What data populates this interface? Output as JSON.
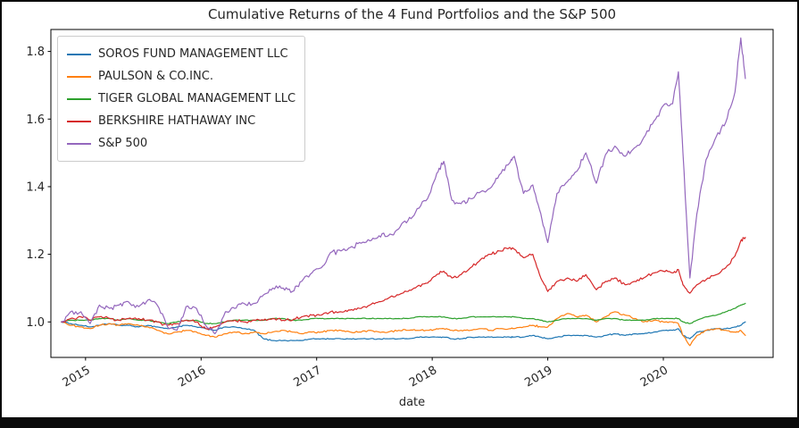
{
  "chart_data": {
    "type": "line",
    "title": "Cumulative Returns of the 4 Fund Portfolios and the S&P 500",
    "xlabel": "date",
    "ylabel": "",
    "xlim": [
      2014.7,
      2020.95
    ],
    "ylim": [
      0.895,
      1.865
    ],
    "xticks": [
      2015,
      2016,
      2017,
      2018,
      2019,
      2020
    ],
    "yticks": [
      1.0,
      1.2,
      1.4,
      1.6,
      1.8
    ],
    "grid": false,
    "legend_position": "upper left",
    "axis_color": "#000000",
    "tick_label_color": "#262626",
    "x": [
      2014.79,
      2014.87,
      2014.96,
      2015.04,
      2015.12,
      2015.21,
      2015.29,
      2015.37,
      2015.46,
      2015.54,
      2015.62,
      2015.71,
      2015.79,
      2015.87,
      2015.96,
      2016.04,
      2016.12,
      2016.21,
      2016.29,
      2016.37,
      2016.46,
      2016.54,
      2016.62,
      2016.71,
      2016.79,
      2016.87,
      2016.96,
      2017.04,
      2017.12,
      2017.21,
      2017.29,
      2017.37,
      2017.46,
      2017.54,
      2017.62,
      2017.71,
      2017.79,
      2017.87,
      2017.96,
      2018.04,
      2018.1,
      2018.17,
      2018.25,
      2018.33,
      2018.42,
      2018.5,
      2018.58,
      2018.67,
      2018.71,
      2018.79,
      2018.87,
      2018.94,
      2019.0,
      2019.08,
      2019.17,
      2019.25,
      2019.33,
      2019.42,
      2019.5,
      2019.58,
      2019.67,
      2019.75,
      2019.83,
      2019.92,
      2020.0,
      2020.08,
      2020.13,
      2020.17,
      2020.23,
      2020.29,
      2020.37,
      2020.46,
      2020.54,
      2020.62,
      2020.67,
      2020.71
    ],
    "series": [
      {
        "name": "SOROS FUND MANAGEMENT LLC",
        "color": "#1f77b4",
        "noise": 0.002,
        "values": [
          1.0,
          0.995,
          0.99,
          0.985,
          0.99,
          0.995,
          0.99,
          0.99,
          0.985,
          0.99,
          0.985,
          0.98,
          0.985,
          0.99,
          0.985,
          0.98,
          0.975,
          0.985,
          0.985,
          0.98,
          0.975,
          0.95,
          0.945,
          0.945,
          0.945,
          0.945,
          0.95,
          0.95,
          0.95,
          0.95,
          0.95,
          0.95,
          0.95,
          0.95,
          0.95,
          0.95,
          0.95,
          0.955,
          0.955,
          0.955,
          0.955,
          0.95,
          0.95,
          0.955,
          0.955,
          0.955,
          0.955,
          0.955,
          0.955,
          0.955,
          0.96,
          0.955,
          0.95,
          0.955,
          0.96,
          0.96,
          0.96,
          0.955,
          0.96,
          0.965,
          0.96,
          0.965,
          0.965,
          0.97,
          0.975,
          0.975,
          0.98,
          0.96,
          0.95,
          0.97,
          0.975,
          0.98,
          0.98,
          0.985,
          0.99,
          1.0
        ]
      },
      {
        "name": "PAULSON & CO.INC.",
        "color": "#ff7f0e",
        "noise": 0.003,
        "values": [
          1.0,
          0.99,
          0.985,
          0.98,
          0.99,
          0.995,
          0.99,
          0.995,
          0.99,
          0.985,
          0.975,
          0.965,
          0.97,
          0.975,
          0.97,
          0.96,
          0.955,
          0.965,
          0.97,
          0.965,
          0.97,
          0.965,
          0.97,
          0.975,
          0.97,
          0.965,
          0.97,
          0.97,
          0.975,
          0.975,
          0.97,
          0.97,
          0.975,
          0.97,
          0.97,
          0.975,
          0.975,
          0.975,
          0.975,
          0.98,
          0.98,
          0.975,
          0.975,
          0.975,
          0.98,
          0.975,
          0.98,
          0.98,
          0.98,
          0.985,
          0.99,
          0.985,
          0.985,
          1.01,
          1.025,
          1.015,
          1.02,
          1.0,
          1.015,
          1.03,
          1.02,
          1.01,
          1.0,
          1.005,
          1.0,
          1.0,
          0.995,
          0.96,
          0.93,
          0.96,
          0.975,
          0.98,
          0.975,
          0.97,
          0.975,
          0.96
        ]
      },
      {
        "name": "TIGER GLOBAL MANAGEMENT LLC",
        "color": "#2ca02c",
        "noise": 0.0015,
        "values": [
          1.0,
          1.005,
          1.005,
          1.005,
          1.01,
          1.01,
          1.005,
          1.01,
          1.005,
          1.005,
          1.0,
          0.995,
          1.0,
          1.005,
          1.005,
          0.995,
          0.995,
          1.0,
          1.005,
          1.005,
          1.005,
          1.005,
          1.01,
          1.01,
          1.005,
          1.005,
          1.01,
          1.01,
          1.01,
          1.01,
          1.01,
          1.01,
          1.01,
          1.01,
          1.01,
          1.01,
          1.01,
          1.015,
          1.015,
          1.015,
          1.015,
          1.01,
          1.01,
          1.015,
          1.015,
          1.015,
          1.015,
          1.015,
          1.015,
          1.01,
          1.01,
          1.005,
          1.0,
          1.005,
          1.01,
          1.01,
          1.01,
          1.005,
          1.01,
          1.01,
          1.005,
          1.005,
          1.005,
          1.01,
          1.01,
          1.01,
          1.01,
          1.0,
          0.995,
          1.005,
          1.015,
          1.02,
          1.03,
          1.04,
          1.05,
          1.055
        ]
      },
      {
        "name": "BERKSHIRE HATHAWAY INC",
        "color": "#d62728",
        "noise": 0.005,
        "values": [
          1.0,
          1.01,
          1.015,
          1.005,
          1.015,
          1.01,
          1.005,
          1.01,
          1.01,
          1.005,
          1.0,
          0.99,
          0.995,
          1.005,
          1.0,
          0.98,
          0.985,
          1.0,
          1.005,
          1.0,
          1.005,
          1.005,
          1.01,
          1.005,
          1.005,
          1.015,
          1.02,
          1.02,
          1.03,
          1.03,
          1.035,
          1.04,
          1.05,
          1.06,
          1.07,
          1.08,
          1.09,
          1.105,
          1.115,
          1.14,
          1.15,
          1.13,
          1.14,
          1.16,
          1.185,
          1.2,
          1.21,
          1.22,
          1.215,
          1.19,
          1.2,
          1.13,
          1.09,
          1.12,
          1.13,
          1.12,
          1.14,
          1.095,
          1.12,
          1.13,
          1.11,
          1.12,
          1.13,
          1.145,
          1.15,
          1.145,
          1.155,
          1.11,
          1.085,
          1.11,
          1.125,
          1.14,
          1.16,
          1.195,
          1.24,
          1.25
        ]
      },
      {
        "name": "S&P 500",
        "color": "#9467bd",
        "noise": 0.009,
        "values": [
          1.0,
          1.03,
          1.03,
          0.995,
          1.05,
          1.04,
          1.05,
          1.06,
          1.045,
          1.065,
          1.05,
          0.985,
          0.975,
          1.045,
          1.04,
          0.99,
          0.965,
          1.03,
          1.04,
          1.055,
          1.055,
          1.08,
          1.1,
          1.1,
          1.09,
          1.12,
          1.145,
          1.16,
          1.205,
          1.21,
          1.22,
          1.235,
          1.24,
          1.255,
          1.255,
          1.275,
          1.3,
          1.335,
          1.365,
          1.44,
          1.475,
          1.36,
          1.35,
          1.365,
          1.385,
          1.395,
          1.435,
          1.47,
          1.49,
          1.38,
          1.405,
          1.32,
          1.235,
          1.38,
          1.415,
          1.445,
          1.5,
          1.41,
          1.495,
          1.52,
          1.49,
          1.515,
          1.545,
          1.595,
          1.64,
          1.645,
          1.74,
          1.5,
          1.13,
          1.32,
          1.48,
          1.55,
          1.59,
          1.68,
          1.84,
          1.72
        ]
      }
    ]
  }
}
